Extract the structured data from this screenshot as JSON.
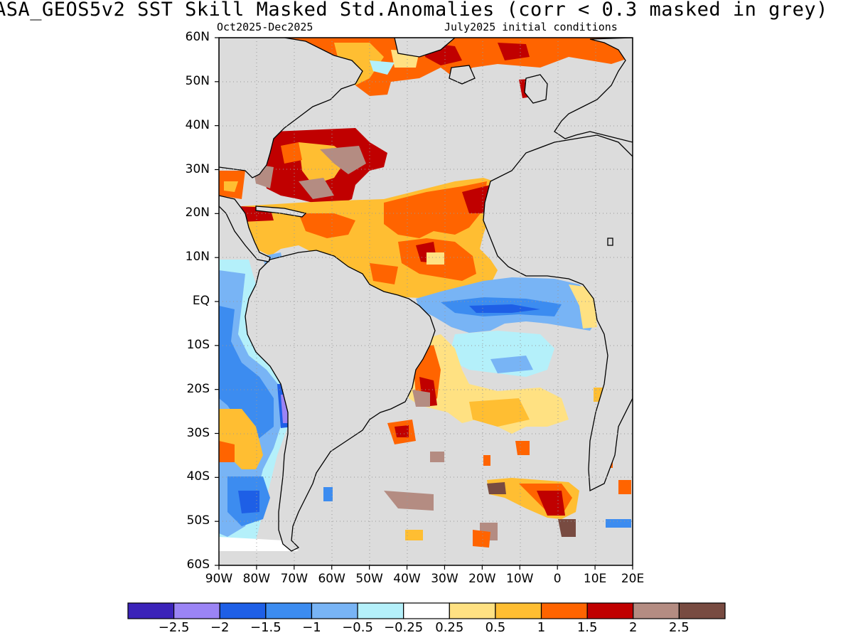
{
  "title": "ASA_GEOS5v2  SST Skill Masked Std.Anomalies (corr < 0.3 masked in grey)",
  "subtitle_left": "Oct2025-Dec2025",
  "subtitle_right": "July2025 initial conditions",
  "lat_labels": [
    "60N",
    "50N",
    "40N",
    "30N",
    "20N",
    "10N",
    "EQ",
    "10S",
    "20S",
    "30S",
    "40S",
    "50S",
    "60S"
  ],
  "lon_labels": [
    "90W",
    "80W",
    "70W",
    "60W",
    "50W",
    "40W",
    "30W",
    "20W",
    "10W",
    "0",
    "10E",
    "20E"
  ],
  "colorbar": {
    "labels": [
      "-2.5",
      "-2",
      "-1.5",
      "-1",
      "-0.5",
      "-0.25",
      "0.25",
      "0.5",
      "1",
      "1.5",
      "2",
      "2.5"
    ],
    "colors": [
      "#3b23b9",
      "#9b84f5",
      "#1e5fe6",
      "#3c8cf0",
      "#78b4f5",
      "#b4f0fa",
      "#ffffff",
      "#ffe182",
      "#ffbe32",
      "#ff6400",
      "#c00000",
      "#b48c82",
      "#784b41"
    ]
  },
  "colors": {
    "masked_grey": "#dcdcdc",
    "land": "#dcdcdc",
    "coast": "#000000"
  }
}
